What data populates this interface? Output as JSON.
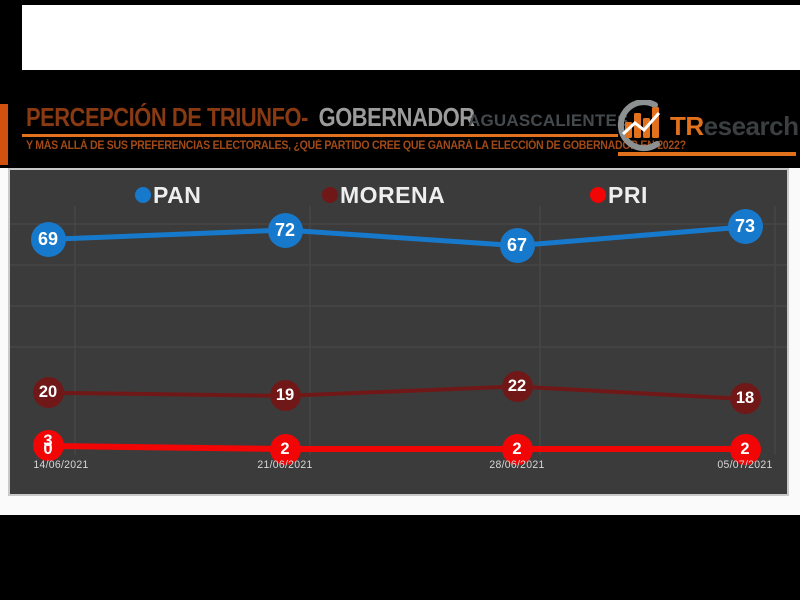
{
  "header": {
    "title_main": "PERCEPCIÓN DE TRIUNFO-",
    "title_secondary": "GOBERNADOR",
    "subtitle": "Y MÁS ALLÁ DE SUS PREFERENCIAS ELECTORALES, ¿QUÉ PARTIDO CREE QUE GANARÁ LA ELECCIÓN DE GOBERNADOR EN 2022?",
    "region": "AGUASCALIENTES",
    "brand": {
      "prefix": "TR",
      "suffix": "esearch"
    },
    "accent_color": "#e2711d",
    "title_color": "#8a3a12",
    "title_secondary_color": "#9b9b9b"
  },
  "chart_data": {
    "type": "line",
    "title": "",
    "xlabel": "",
    "ylabel": "",
    "categories": [
      "14/06/2021",
      "21/06/2021",
      "28/06/2021",
      "05/07/2021"
    ],
    "series": [
      {
        "name": "PAN",
        "color": "#1779cb",
        "values": [
          69,
          72,
          67,
          73
        ]
      },
      {
        "name": "MORENA",
        "color": "#701818",
        "values": [
          20,
          19,
          22,
          18
        ]
      },
      {
        "name": "PRI",
        "color": "#f20505",
        "values": [
          3,
          2,
          2,
          2
        ],
        "first_label_overlap": "0"
      }
    ],
    "ylim": [
      0,
      80
    ],
    "grid": true,
    "legend_position": "top",
    "panel_bg": "#3b3b3b",
    "gridline_color": "#464646",
    "label_text_color": "#ffffff"
  }
}
